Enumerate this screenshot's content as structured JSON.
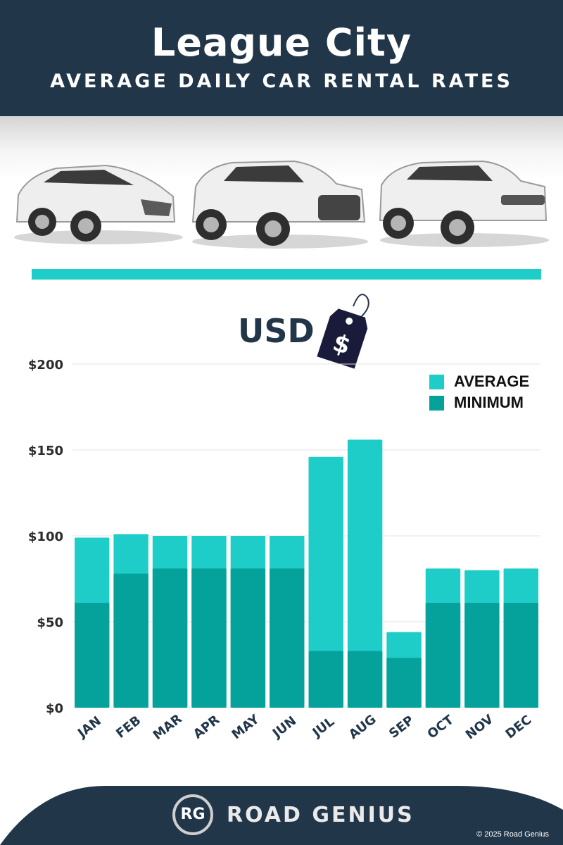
{
  "header": {
    "title": "League City",
    "subtitle": "AVERAGE DAILY CAR RENTAL RATES"
  },
  "currency_label": "USD",
  "price_tag_symbol": "$",
  "footer": {
    "logo_text": "RG",
    "brand": "ROAD GENIUS",
    "copyright": "© 2025 Road Genius"
  },
  "colors": {
    "navy": "#22364a",
    "average": "#1ecdc8",
    "minimum": "#05a19b"
  },
  "chart_data": {
    "type": "bar",
    "stacking": "overlay",
    "categories": [
      "JAN",
      "FEB",
      "MAR",
      "APR",
      "MAY",
      "JUN",
      "JUL",
      "AUG",
      "SEP",
      "OCT",
      "NOV",
      "DEC"
    ],
    "series": [
      {
        "name": "AVERAGE",
        "color": "#1ecdc8",
        "values": [
          99,
          101,
          100,
          100,
          100,
          100,
          146,
          156,
          44,
          81,
          80,
          81
        ]
      },
      {
        "name": "MINIMUM",
        "color": "#05a19b",
        "values": [
          61,
          78,
          81,
          81,
          81,
          81,
          33,
          33,
          29,
          61,
          61,
          61
        ]
      }
    ],
    "yticks": [
      "$0",
      "$50",
      "$100",
      "$150",
      "$200"
    ],
    "ytick_values": [
      0,
      50,
      100,
      150,
      200
    ],
    "ylim": [
      0,
      200
    ],
    "grid": true,
    "legend_position": "top-right"
  }
}
